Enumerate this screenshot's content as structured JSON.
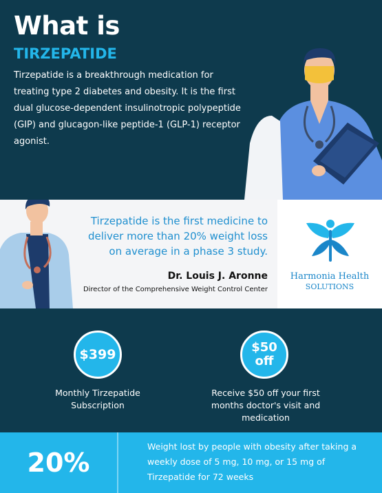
{
  "hero": {
    "title": "What is",
    "subtitle": "TIRZEPATIDE",
    "description": "Tirzepatide is a breakthrough medication for treating type 2 diabetes and obesity. It is the first dual glucose-dependent insulinotropic polypeptide (GIP) and glucagon-like peptide-1 (GLP-1) receptor agonist."
  },
  "quote": {
    "text": "Tirzepatide is the first medicine to deliver more than 20% weight loss on average in a phase 3 study.",
    "author": "Dr. Louis J. Aronne",
    "role": "Director of the Comprehensive Weight Control Center"
  },
  "brand": {
    "name": "Harmonia Health",
    "tagline": "SOLUTIONS"
  },
  "offers": [
    {
      "badge": "$399",
      "text": "Monthly Tirzepatide Subscription"
    },
    {
      "badge_line1": "$50",
      "badge_line2": "off",
      "text": "Receive $50 off your first months doctor's visit and medication"
    }
  ],
  "stat": {
    "value": "20%",
    "text": "Weight lost by people with obesity after taking a weekly dose of 5 mg, 10 mg, or 15 mg of Tirzepatide for 72 weeks"
  },
  "colors": {
    "navy": "#0e3a4d",
    "accent": "#23b6ea",
    "quote_blue": "#1f8fcf"
  }
}
